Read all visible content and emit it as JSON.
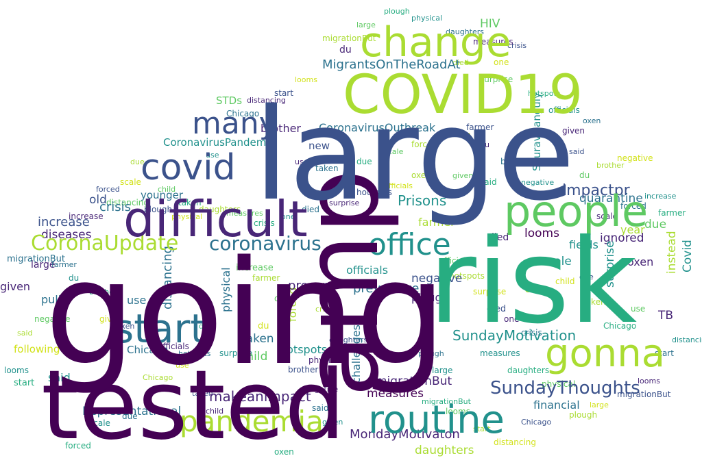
{
  "colors": {
    "purple": "#440154",
    "indigo": "#482677",
    "blue": "#3b528b",
    "teal": "#2c728e",
    "cyan": "#21918c",
    "green": "#27ad81",
    "lime": "#5ec962",
    "yellowgreen": "#aadc32",
    "yellow": "#d2e21b",
    "background": "#ffffff"
  },
  "words": [
    {
      "text": "going",
      "color": "purple"
    },
    {
      "text": "large",
      "color": "blue"
    },
    {
      "text": "risk",
      "color": "green"
    },
    {
      "text": "tested",
      "color": "purple"
    },
    {
      "text": "amp",
      "color": "purple"
    },
    {
      "text": "COVID19",
      "color": "yellowgreen"
    },
    {
      "text": "difficult",
      "color": "indigo"
    },
    {
      "text": "change",
      "color": "yellowgreen"
    },
    {
      "text": "people",
      "color": "lime"
    },
    {
      "text": "routine",
      "color": "cyan"
    },
    {
      "text": "gonna",
      "color": "yellowgreen"
    },
    {
      "text": "start",
      "color": "teal"
    },
    {
      "text": "office",
      "color": "cyan"
    },
    {
      "text": "covid",
      "color": "blue"
    },
    {
      "text": "many",
      "color": "blue"
    },
    {
      "text": "pandemia",
      "color": "yellowgreen"
    },
    {
      "text": "CoronaUpdate",
      "color": "yellowgreen"
    },
    {
      "text": "coronavirus",
      "color": "teal"
    },
    {
      "text": "SundayThoughts",
      "color": "blue"
    },
    {
      "text": "SundayMotivation",
      "color": "cyan"
    },
    {
      "text": "MondayMotivaton",
      "color": "indigo"
    },
    {
      "text": "makeanimpact",
      "color": "indigo"
    },
    {
      "text": "CoronavirusOutbreak",
      "color": "teal"
    },
    {
      "text": "CoronavirusPandemic",
      "color": "cyan"
    },
    {
      "text": "MigrantsOnTheRoadAt",
      "color": "teal"
    },
    {
      "text": "impactpr",
      "color": "blue"
    },
    {
      "text": "Prisons",
      "color": "cyan"
    },
    {
      "text": "increase",
      "color": "blue"
    },
    {
      "text": "diseases",
      "color": "indigo"
    },
    {
      "text": "Representational",
      "color": "teal"
    },
    {
      "text": "measures",
      "color": "purple"
    },
    {
      "text": "daughters",
      "color": "yellowgreen"
    },
    {
      "text": "following",
      "color": "yellow"
    },
    {
      "text": "challenges",
      "color": "teal"
    },
    {
      "text": "migrationBut",
      "color": "indigo"
    },
    {
      "text": "quarantine",
      "color": "teal"
    },
    {
      "text": "officials",
      "color": "cyan"
    },
    {
      "text": "preventive",
      "color": "teal"
    },
    {
      "text": "distancing",
      "color": "teal"
    },
    {
      "text": "physical",
      "color": "teal"
    },
    {
      "text": "financial",
      "color": "teal"
    },
    {
      "text": "hotspots",
      "color": "cyan"
    },
    {
      "text": "SouravGanguly",
      "color": "cyan"
    },
    {
      "text": "brother",
      "color": "indigo"
    },
    {
      "text": "ignored",
      "color": "indigo"
    },
    {
      "text": "farmer",
      "color": "yellowgreen"
    },
    {
      "text": "Chicago",
      "color": "teal"
    },
    {
      "text": "plough",
      "color": "indigo"
    },
    {
      "text": "scale",
      "color": "cyan"
    },
    {
      "text": "fields",
      "color": "cyan"
    },
    {
      "text": "looms",
      "color": "purple"
    },
    {
      "text": "present",
      "color": "indigo"
    },
    {
      "text": "negative",
      "color": "blue"
    },
    {
      "text": "forced",
      "color": "yellowgreen"
    },
    {
      "text": "oxen",
      "color": "indigo"
    },
    {
      "text": "died",
      "color": "indigo"
    },
    {
      "text": "younger",
      "color": "teal"
    },
    {
      "text": "crisis",
      "color": "teal"
    },
    {
      "text": "taken",
      "color": "teal"
    },
    {
      "text": "child",
      "color": "lime"
    },
    {
      "text": "said",
      "color": "cyan"
    },
    {
      "text": "pull",
      "color": "teal"
    },
    {
      "text": "use",
      "color": "teal"
    },
    {
      "text": "given",
      "color": "indigo"
    },
    {
      "text": "old",
      "color": "blue"
    },
    {
      "text": "new",
      "color": "blue"
    },
    {
      "text": "due",
      "color": "lime"
    },
    {
      "text": "year",
      "color": "yellowgreen"
    },
    {
      "text": "one",
      "color": "yellowgreen"
    },
    {
      "text": "instead",
      "color": "yellowgreen"
    },
    {
      "text": "surprise",
      "color": "cyan"
    },
    {
      "text": "STDs",
      "color": "lime"
    },
    {
      "text": "HIV",
      "color": "lime"
    },
    {
      "text": "TB",
      "color": "indigo"
    },
    {
      "text": "du",
      "color": "indigo"
    },
    {
      "text": "Covid",
      "color": "cyan"
    }
  ]
}
